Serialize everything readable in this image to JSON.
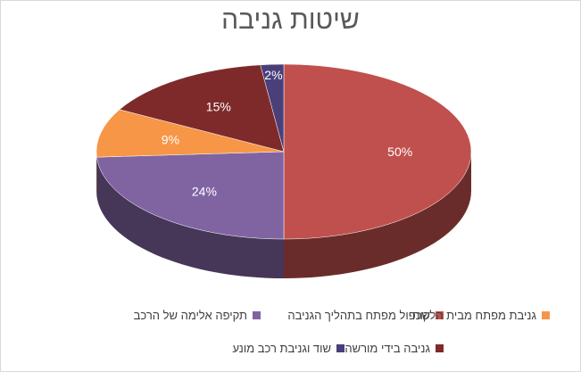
{
  "chart_data": {
    "type": "pie",
    "title": "שיטות גניבה",
    "legend_placement": "bottom",
    "slices": [
      {
        "name": "שכפול מפתח בתהליך הגניבה",
        "value": 50,
        "label": "50%",
        "color": "#c0504d"
      },
      {
        "name": "תקיפה אלימה של הרכב",
        "value": 24,
        "label": "24%",
        "color": "#8064a2"
      },
      {
        "name": "גניבת מפתח מבית הלקוח",
        "value": 9,
        "label": "9%",
        "color": "#f79646"
      },
      {
        "name": "גניבה בידי מורשה",
        "value": 15,
        "label": "15%",
        "color": "#7f2a2a"
      },
      {
        "name": "שוד וגניבת רכב מונע",
        "value": 2,
        "label": "2%",
        "color": "#4b3f7a"
      }
    ]
  }
}
